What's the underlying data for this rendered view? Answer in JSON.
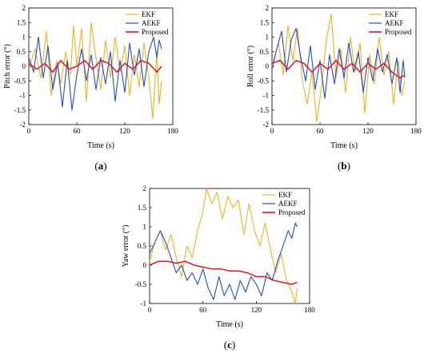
{
  "colors": {
    "EKF": "#f2b21e",
    "AEKF": "#1f4fd1",
    "Proposed": "#e3141c"
  },
  "chart_data": [
    {
      "id": "a",
      "type": "line",
      "panel_label_letter": "a",
      "xlabel": "Time (s)",
      "ylabel": "Pitch error (°)",
      "xlim": [
        0,
        180
      ],
      "ylim": [
        -2,
        2
      ],
      "xticks": [
        0,
        60,
        120,
        180
      ],
      "yticks": [
        -2,
        -1.5,
        -1,
        -0.5,
        0,
        0.5,
        1,
        1.5,
        2
      ],
      "legend": "top-right",
      "series": [
        {
          "name": "EKF",
          "x": [
            0,
            8,
            15,
            22,
            28,
            35,
            40,
            46,
            52,
            56,
            60,
            66,
            72,
            78,
            84,
            90,
            96,
            102,
            108,
            114,
            120,
            126,
            132,
            138,
            144,
            150,
            155,
            160,
            163,
            166
          ],
          "y": [
            -0.1,
            0.6,
            -0.4,
            1.2,
            -1.0,
            0.2,
            -0.6,
            0.5,
            -0.3,
            1.4,
            0.0,
            1.3,
            -1.2,
            1.5,
            0.3,
            -0.8,
            0.9,
            -0.4,
            1.0,
            -0.2,
            0.7,
            -1.0,
            0.4,
            -0.7,
            0.8,
            -0.4,
            -1.8,
            0.5,
            -1.3,
            -0.5
          ]
        },
        {
          "name": "AEKF",
          "x": [
            0,
            6,
            12,
            18,
            24,
            30,
            36,
            42,
            48,
            54,
            60,
            66,
            72,
            78,
            84,
            90,
            96,
            102,
            108,
            114,
            120,
            126,
            132,
            138,
            144,
            150,
            156,
            160,
            163,
            166
          ],
          "y": [
            0.3,
            -0.2,
            1.0,
            -0.4,
            0.7,
            -0.8,
            0.1,
            -1.4,
            0.2,
            -1.5,
            -0.3,
            0.6,
            -0.5,
            0.4,
            -0.8,
            0.3,
            -0.6,
            0.5,
            -1.2,
            0.2,
            -0.9,
            0.8,
            -0.3,
            0.6,
            -0.7,
            0.5,
            1.0,
            0.3,
            0.9,
            0.6
          ]
        },
        {
          "name": "Proposed",
          "x": [
            0,
            10,
            20,
            30,
            40,
            50,
            60,
            70,
            80,
            90,
            100,
            110,
            120,
            130,
            140,
            150,
            160,
            166
          ],
          "y": [
            0.1,
            -0.1,
            0.1,
            -0.2,
            0.2,
            -0.1,
            0.0,
            0.2,
            -0.1,
            0.2,
            0.1,
            -0.2,
            0.1,
            -0.1,
            0.2,
            0.1,
            -0.2,
            0.0
          ]
        }
      ]
    },
    {
      "id": "b",
      "type": "line",
      "panel_label_letter": "b",
      "xlabel": "Time (s)",
      "ylabel": "Roll error (°)",
      "xlim": [
        0,
        180
      ],
      "ylim": [
        -2,
        2
      ],
      "xticks": [
        0,
        60,
        120,
        180
      ],
      "yticks": [
        -2,
        -1.5,
        -1,
        -0.5,
        0,
        0.5,
        1,
        1.5,
        2
      ],
      "legend": "top-right",
      "series": [
        {
          "name": "EKF",
          "x": [
            0,
            8,
            14,
            20,
            26,
            32,
            38,
            44,
            50,
            56,
            62,
            68,
            74,
            80,
            86,
            92,
            98,
            104,
            110,
            116,
            122,
            128,
            134,
            140,
            146,
            152,
            158,
            162,
            166
          ],
          "y": [
            0.0,
            0.8,
            -0.3,
            1.4,
            0.2,
            1.3,
            -0.5,
            -1.3,
            -0.2,
            -1.9,
            -0.7,
            0.9,
            1.8,
            -0.4,
            0.6,
            -0.9,
            1.0,
            -0.2,
            0.8,
            -1.6,
            0.4,
            -0.6,
            1.0,
            -0.3,
            0.5,
            -1.3,
            0.2,
            -1.0,
            -0.5
          ]
        },
        {
          "name": "AEKF",
          "x": [
            0,
            6,
            12,
            18,
            24,
            30,
            36,
            42,
            48,
            54,
            60,
            66,
            72,
            78,
            84,
            90,
            96,
            102,
            108,
            114,
            120,
            126,
            132,
            138,
            144,
            150,
            156,
            160,
            164,
            166
          ],
          "y": [
            -0.1,
            0.6,
            1.2,
            -0.2,
            0.9,
            1.3,
            0.3,
            -0.5,
            0.7,
            -0.8,
            0.2,
            -1.1,
            0.4,
            -0.6,
            0.6,
            -0.4,
            0.8,
            -0.2,
            0.5,
            -0.9,
            0.3,
            -0.5,
            0.6,
            -0.2,
            0.4,
            -0.6,
            0.3,
            -0.9,
            0.2,
            -0.4
          ]
        },
        {
          "name": "Proposed",
          "x": [
            0,
            10,
            20,
            30,
            40,
            50,
            60,
            70,
            80,
            90,
            100,
            110,
            120,
            130,
            140,
            150,
            160,
            166
          ],
          "y": [
            0.1,
            0.2,
            -0.1,
            0.2,
            0.1,
            -0.2,
            0.1,
            -0.1,
            0.2,
            -0.1,
            0.1,
            -0.2,
            0.1,
            -0.1,
            0.1,
            -0.2,
            -0.4,
            -0.3
          ]
        }
      ]
    },
    {
      "id": "c",
      "type": "line",
      "panel_label_letter": "c",
      "xlabel": "Time (s)",
      "ylabel": "Yaw error (°)",
      "xlim": [
        0,
        180
      ],
      "ylim": [
        -1,
        2
      ],
      "xticks": [
        0,
        60,
        120,
        180
      ],
      "yticks": [
        -1,
        -0.5,
        0,
        0.5,
        1,
        1.5,
        2
      ],
      "legend": "top-right",
      "series": [
        {
          "name": "EKF",
          "x": [
            0,
            6,
            12,
            18,
            24,
            30,
            36,
            42,
            48,
            54,
            60,
            64,
            70,
            76,
            82,
            88,
            94,
            100,
            106,
            112,
            118,
            124,
            130,
            136,
            142,
            148,
            154,
            160,
            164,
            166
          ],
          "y": [
            0.1,
            0.6,
            0.9,
            0.4,
            0.8,
            0.2,
            -0.3,
            0.5,
            0.2,
            0.9,
            1.4,
            2.0,
            1.6,
            1.9,
            1.2,
            1.8,
            1.5,
            1.7,
            0.8,
            1.6,
            0.9,
            0.5,
            1.1,
            0.4,
            -0.2,
            0.3,
            -0.4,
            -0.7,
            -1.0,
            -0.6
          ]
        },
        {
          "name": "AEKF",
          "x": [
            0,
            6,
            12,
            18,
            24,
            30,
            36,
            42,
            48,
            54,
            60,
            66,
            72,
            78,
            84,
            90,
            96,
            102,
            108,
            114,
            120,
            126,
            132,
            138,
            144,
            150,
            156,
            160,
            164,
            166
          ],
          "y": [
            0.3,
            0.6,
            0.9,
            0.6,
            0.2,
            -0.2,
            0.0,
            -0.4,
            -0.2,
            -0.5,
            -0.1,
            -0.6,
            -0.9,
            -0.3,
            -0.8,
            -0.5,
            -0.9,
            -0.4,
            -0.7,
            -0.3,
            -0.5,
            -0.8,
            -0.2,
            -0.4,
            0.1,
            0.5,
            0.9,
            0.7,
            1.1,
            1.0
          ]
        },
        {
          "name": "Proposed",
          "x": [
            0,
            10,
            20,
            30,
            40,
            50,
            60,
            70,
            80,
            90,
            100,
            110,
            120,
            130,
            140,
            150,
            160,
            166
          ],
          "y": [
            0.0,
            0.1,
            0.1,
            0.05,
            0.1,
            0.0,
            -0.05,
            -0.1,
            -0.1,
            -0.15,
            -0.15,
            -0.2,
            -0.3,
            -0.3,
            -0.4,
            -0.45,
            -0.5,
            -0.45
          ]
        }
      ]
    }
  ]
}
